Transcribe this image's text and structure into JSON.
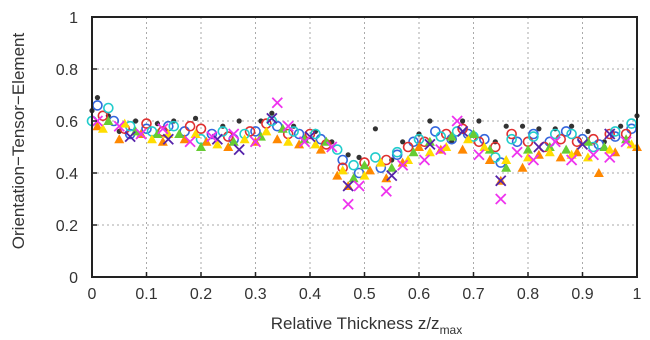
{
  "chart_data": {
    "type": "scatter",
    "title": "",
    "xlabel": {
      "main": "Relative Thickness z/z",
      "sub": "max"
    },
    "ylabel": "Orientation−Tensor−Element",
    "xlim": [
      0,
      1
    ],
    "ylim": [
      0,
      1
    ],
    "xticks": [
      0,
      0.1,
      0.2,
      0.3,
      0.4,
      0.5,
      0.6,
      0.7,
      0.8,
      0.9,
      1
    ],
    "xtick_labels": [
      "0",
      "0.1",
      "0.2",
      "0.3",
      "0.4",
      "0.5",
      "0.6",
      "0.7",
      "0.8",
      "0.9",
      "1"
    ],
    "yticks": [
      0,
      0.2,
      0.4,
      0.6,
      0.8,
      1
    ],
    "ytick_labels": [
      "0",
      "0.2",
      "0.4",
      "0.6",
      "0.8",
      "1"
    ],
    "grid": true,
    "legend": "none",
    "series": [
      {
        "marker": "dot",
        "color": "#333333",
        "values": [
          [
            0.0,
            0.64
          ],
          [
            0.01,
            0.69
          ],
          [
            0.03,
            0.62
          ],
          [
            0.05,
            0.56
          ],
          [
            0.08,
            0.6
          ],
          [
            0.12,
            0.59
          ],
          [
            0.15,
            0.6
          ],
          [
            0.19,
            0.61
          ],
          [
            0.24,
            0.58
          ],
          [
            0.27,
            0.6
          ],
          [
            0.31,
            0.6
          ],
          [
            0.33,
            0.63
          ],
          [
            0.37,
            0.58
          ],
          [
            0.41,
            0.56
          ],
          [
            0.44,
            0.52
          ],
          [
            0.47,
            0.47
          ],
          [
            0.49,
            0.46
          ],
          [
            0.52,
            0.57
          ],
          [
            0.55,
            0.45
          ],
          [
            0.57,
            0.52
          ],
          [
            0.6,
            0.55
          ],
          [
            0.62,
            0.6
          ],
          [
            0.66,
            0.52
          ],
          [
            0.68,
            0.6
          ],
          [
            0.71,
            0.6
          ],
          [
            0.74,
            0.52
          ],
          [
            0.76,
            0.58
          ],
          [
            0.79,
            0.58
          ],
          [
            0.82,
            0.57
          ],
          [
            0.85,
            0.57
          ],
          [
            0.88,
            0.58
          ],
          [
            0.91,
            0.56
          ],
          [
            0.94,
            0.52
          ],
          [
            0.97,
            0.58
          ],
          [
            1.0,
            0.62
          ]
        ]
      },
      {
        "marker": "circle",
        "color": "#3366dd",
        "values": [
          [
            0.01,
            0.66
          ],
          [
            0.04,
            0.6
          ],
          [
            0.07,
            0.55
          ],
          [
            0.1,
            0.57
          ],
          [
            0.14,
            0.58
          ],
          [
            0.17,
            0.56
          ],
          [
            0.22,
            0.55
          ],
          [
            0.26,
            0.53
          ],
          [
            0.3,
            0.56
          ],
          [
            0.34,
            0.58
          ],
          [
            0.38,
            0.55
          ],
          [
            0.42,
            0.53
          ],
          [
            0.46,
            0.45
          ],
          [
            0.49,
            0.4
          ],
          [
            0.53,
            0.42
          ],
          [
            0.56,
            0.47
          ],
          [
            0.59,
            0.52
          ],
          [
            0.63,
            0.56
          ],
          [
            0.66,
            0.53
          ],
          [
            0.69,
            0.55
          ],
          [
            0.72,
            0.53
          ],
          [
            0.75,
            0.44
          ],
          [
            0.78,
            0.52
          ],
          [
            0.81,
            0.55
          ],
          [
            0.84,
            0.52
          ],
          [
            0.87,
            0.56
          ],
          [
            0.9,
            0.53
          ],
          [
            0.93,
            0.51
          ],
          [
            0.96,
            0.54
          ],
          [
            0.99,
            0.57
          ]
        ]
      },
      {
        "marker": "circle",
        "color": "#e03030",
        "values": [
          [
            0.02,
            0.62
          ],
          [
            0.06,
            0.57
          ],
          [
            0.1,
            0.59
          ],
          [
            0.13,
            0.56
          ],
          [
            0.18,
            0.58
          ],
          [
            0.2,
            0.57
          ],
          [
            0.25,
            0.54
          ],
          [
            0.29,
            0.56
          ],
          [
            0.32,
            0.59
          ],
          [
            0.36,
            0.55
          ],
          [
            0.4,
            0.55
          ],
          [
            0.43,
            0.51
          ],
          [
            0.46,
            0.42
          ],
          [
            0.5,
            0.44
          ],
          [
            0.54,
            0.45
          ],
          [
            0.58,
            0.5
          ],
          [
            0.61,
            0.52
          ],
          [
            0.65,
            0.55
          ],
          [
            0.68,
            0.57
          ],
          [
            0.71,
            0.52
          ],
          [
            0.74,
            0.5
          ],
          [
            0.77,
            0.55
          ],
          [
            0.8,
            0.52
          ],
          [
            0.83,
            0.5
          ],
          [
            0.86,
            0.53
          ],
          [
            0.89,
            0.52
          ],
          [
            0.92,
            0.53
          ],
          [
            0.95,
            0.55
          ],
          [
            0.98,
            0.55
          ]
        ]
      },
      {
        "marker": "circle",
        "color": "#22cccc",
        "values": [
          [
            0.0,
            0.6
          ],
          [
            0.03,
            0.65
          ],
          [
            0.07,
            0.58
          ],
          [
            0.11,
            0.56
          ],
          [
            0.15,
            0.58
          ],
          [
            0.2,
            0.53
          ],
          [
            0.24,
            0.56
          ],
          [
            0.28,
            0.55
          ],
          [
            0.33,
            0.6
          ],
          [
            0.37,
            0.56
          ],
          [
            0.41,
            0.55
          ],
          [
            0.45,
            0.49
          ],
          [
            0.48,
            0.43
          ],
          [
            0.52,
            0.46
          ],
          [
            0.56,
            0.48
          ],
          [
            0.6,
            0.53
          ],
          [
            0.64,
            0.54
          ],
          [
            0.67,
            0.56
          ],
          [
            0.7,
            0.54
          ],
          [
            0.74,
            0.46
          ],
          [
            0.77,
            0.53
          ],
          [
            0.81,
            0.54
          ],
          [
            0.85,
            0.55
          ],
          [
            0.88,
            0.55
          ],
          [
            0.92,
            0.5
          ],
          [
            0.96,
            0.56
          ],
          [
            0.99,
            0.59
          ]
        ]
      },
      {
        "marker": "triangle",
        "color": "#ff8800",
        "values": [
          [
            0.01,
            0.58
          ],
          [
            0.05,
            0.53
          ],
          [
            0.09,
            0.55
          ],
          [
            0.13,
            0.52
          ],
          [
            0.17,
            0.53
          ],
          [
            0.21,
            0.52
          ],
          [
            0.25,
            0.5
          ],
          [
            0.3,
            0.52
          ],
          [
            0.34,
            0.53
          ],
          [
            0.38,
            0.51
          ],
          [
            0.42,
            0.49
          ],
          [
            0.45,
            0.39
          ],
          [
            0.47,
            0.35
          ],
          [
            0.51,
            0.41
          ],
          [
            0.54,
            0.38
          ],
          [
            0.57,
            0.44
          ],
          [
            0.6,
            0.5
          ],
          [
            0.64,
            0.49
          ],
          [
            0.68,
            0.49
          ],
          [
            0.73,
            0.45
          ],
          [
            0.75,
            0.37
          ],
          [
            0.79,
            0.42
          ],
          [
            0.82,
            0.47
          ],
          [
            0.86,
            0.46
          ],
          [
            0.89,
            0.48
          ],
          [
            0.93,
            0.4
          ],
          [
            0.96,
            0.48
          ],
          [
            1.0,
            0.5
          ]
        ]
      },
      {
        "marker": "triangle",
        "color": "#66cc33",
        "values": [
          [
            0.03,
            0.6
          ],
          [
            0.08,
            0.56
          ],
          [
            0.12,
            0.55
          ],
          [
            0.16,
            0.55
          ],
          [
            0.2,
            0.5
          ],
          [
            0.26,
            0.52
          ],
          [
            0.31,
            0.54
          ],
          [
            0.35,
            0.57
          ],
          [
            0.39,
            0.53
          ],
          [
            0.43,
            0.52
          ],
          [
            0.48,
            0.38
          ],
          [
            0.5,
            0.43
          ],
          [
            0.55,
            0.42
          ],
          [
            0.59,
            0.48
          ],
          [
            0.62,
            0.52
          ],
          [
            0.66,
            0.54
          ],
          [
            0.7,
            0.55
          ],
          [
            0.73,
            0.49
          ],
          [
            0.76,
            0.42
          ],
          [
            0.8,
            0.49
          ],
          [
            0.84,
            0.5
          ],
          [
            0.87,
            0.49
          ],
          [
            0.91,
            0.52
          ],
          [
            0.94,
            0.5
          ],
          [
            0.98,
            0.53
          ]
        ]
      },
      {
        "marker": "triangle",
        "color": "#ffdd00",
        "values": [
          [
            0.02,
            0.57
          ],
          [
            0.06,
            0.59
          ],
          [
            0.11,
            0.53
          ],
          [
            0.14,
            0.55
          ],
          [
            0.19,
            0.55
          ],
          [
            0.23,
            0.51
          ],
          [
            0.28,
            0.53
          ],
          [
            0.32,
            0.56
          ],
          [
            0.36,
            0.52
          ],
          [
            0.41,
            0.51
          ],
          [
            0.46,
            0.41
          ],
          [
            0.5,
            0.39
          ],
          [
            0.53,
            0.44
          ],
          [
            0.58,
            0.45
          ],
          [
            0.62,
            0.48
          ],
          [
            0.65,
            0.5
          ],
          [
            0.69,
            0.53
          ],
          [
            0.72,
            0.5
          ],
          [
            0.76,
            0.45
          ],
          [
            0.8,
            0.46
          ],
          [
            0.84,
            0.48
          ],
          [
            0.88,
            0.47
          ],
          [
            0.91,
            0.46
          ],
          [
            0.95,
            0.49
          ],
          [
            0.99,
            0.51
          ]
        ]
      },
      {
        "marker": "cross",
        "color": "#5522aa",
        "values": [
          [
            0.07,
            0.54
          ],
          [
            0.14,
            0.53
          ],
          [
            0.23,
            0.53
          ],
          [
            0.27,
            0.49
          ],
          [
            0.33,
            0.61
          ],
          [
            0.4,
            0.54
          ],
          [
            0.47,
            0.35
          ],
          [
            0.55,
            0.39
          ],
          [
            0.62,
            0.51
          ],
          [
            0.68,
            0.56
          ],
          [
            0.75,
            0.37
          ],
          [
            0.82,
            0.5
          ],
          [
            0.9,
            0.51
          ],
          [
            0.95,
            0.55
          ]
        ]
      },
      {
        "marker": "cross",
        "color": "#ee33ee",
        "values": [
          [
            0.01,
            0.6
          ],
          [
            0.05,
            0.58
          ],
          [
            0.09,
            0.55
          ],
          [
            0.13,
            0.57
          ],
          [
            0.18,
            0.52
          ],
          [
            0.22,
            0.54
          ],
          [
            0.26,
            0.55
          ],
          [
            0.3,
            0.52
          ],
          [
            0.34,
            0.67
          ],
          [
            0.36,
            0.58
          ],
          [
            0.39,
            0.52
          ],
          [
            0.44,
            0.5
          ],
          [
            0.47,
            0.28
          ],
          [
            0.49,
            0.35
          ],
          [
            0.54,
            0.33
          ],
          [
            0.57,
            0.43
          ],
          [
            0.61,
            0.45
          ],
          [
            0.64,
            0.49
          ],
          [
            0.67,
            0.6
          ],
          [
            0.71,
            0.47
          ],
          [
            0.75,
            0.3
          ],
          [
            0.78,
            0.48
          ],
          [
            0.81,
            0.45
          ],
          [
            0.85,
            0.52
          ],
          [
            0.88,
            0.45
          ],
          [
            0.92,
            0.47
          ],
          [
            0.95,
            0.46
          ],
          [
            0.98,
            0.52
          ]
        ]
      }
    ]
  }
}
